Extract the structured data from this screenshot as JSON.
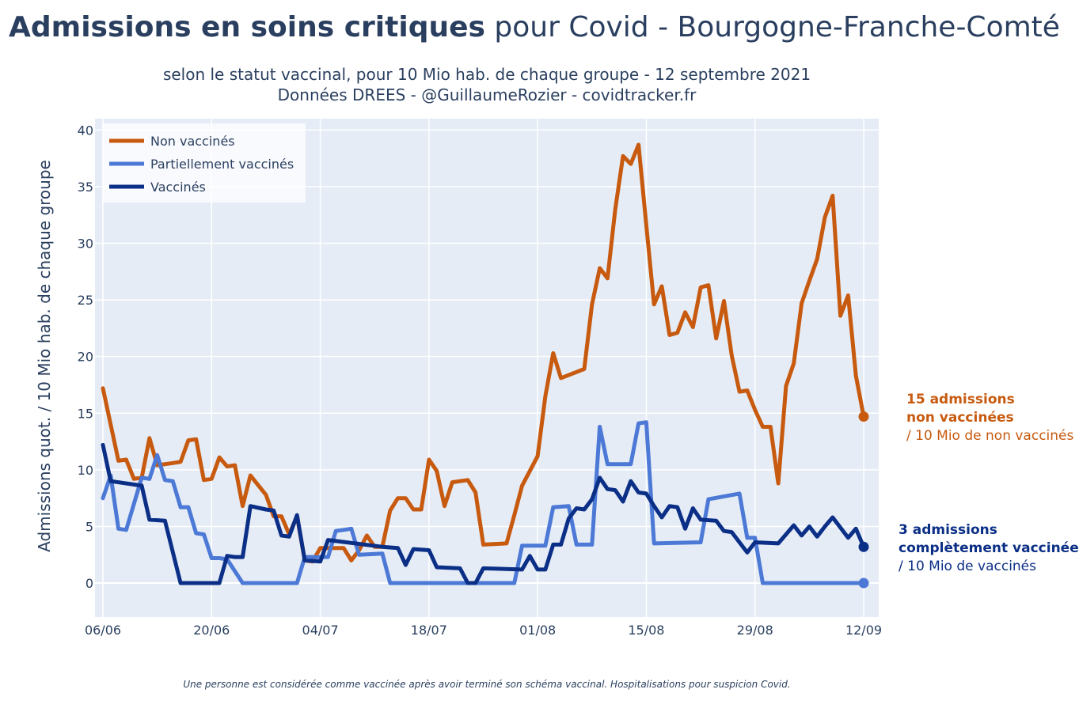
{
  "title": {
    "bold": "Admissions en soins critiques",
    "rest": " pour Covid - Bourgogne-Franche-Comté"
  },
  "subtitle": {
    "line1": "selon le statut vaccinal, pour 10 Mio hab. de chaque groupe - 12 septembre 2021",
    "line2": "Données DREES - @GuillaumeRozier - covidtracker.fr"
  },
  "footnote": "Une personne est considérée comme vaccinée après avoir terminé son schéma vaccinal. Hospitalisations pour suspicion Covid.",
  "annotations": {
    "unvaccinated": {
      "line1": "15 admissions",
      "line2": "non vaccinées",
      "line3": "/ 10 Mio de non vaccinés",
      "color": "#c75a0f"
    },
    "vaccinated": {
      "line1": "3 admissions",
      "line2": "complètement vaccinée",
      "line3": "/ 10 Mio de vaccinés",
      "color": "#0b2f86"
    }
  },
  "colors": {
    "plot_bg": "#e5ecf6",
    "grid": "#ffffff",
    "axis_text": "#2a3f5f"
  },
  "chart_data": {
    "type": "line",
    "ylabel": "Admissions quot. / 10 Mio hab. de chaque groupe",
    "xlabel": "",
    "x_start": "2021-06-06",
    "x_end": "2021-09-12",
    "ylim": [
      -3,
      41
    ],
    "yticks": [
      0,
      5,
      10,
      15,
      20,
      25,
      30,
      35,
      40
    ],
    "xticks": [
      {
        "date": "2021-06-06",
        "label": "06/06"
      },
      {
        "date": "2021-06-20",
        "label": "20/06"
      },
      {
        "date": "2021-07-04",
        "label": "04/07"
      },
      {
        "date": "2021-07-18",
        "label": "18/07"
      },
      {
        "date": "2021-08-01",
        "label": "01/08"
      },
      {
        "date": "2021-08-15",
        "label": "15/08"
      },
      {
        "date": "2021-08-29",
        "label": "29/08"
      },
      {
        "date": "2021-09-12",
        "label": "12/09"
      }
    ],
    "grid": true,
    "legend_position": "top-left",
    "series": [
      {
        "name": "Non vaccinés",
        "color": "#c75a0f",
        "values": [
          [
            "2021-06-06",
            17.2
          ],
          [
            "2021-06-07",
            14.0
          ],
          [
            "2021-06-08",
            10.8
          ],
          [
            "2021-06-09",
            10.9
          ],
          [
            "2021-06-10",
            9.2
          ],
          [
            "2021-06-11",
            9.3
          ],
          [
            "2021-06-12",
            12.8
          ],
          [
            "2021-06-13",
            10.4
          ],
          [
            "2021-06-15",
            10.6
          ],
          [
            "2021-06-16",
            10.7
          ],
          [
            "2021-06-17",
            12.6
          ],
          [
            "2021-06-18",
            12.7
          ],
          [
            "2021-06-19",
            9.1
          ],
          [
            "2021-06-20",
            9.2
          ],
          [
            "2021-06-21",
            11.1
          ],
          [
            "2021-06-22",
            10.3
          ],
          [
            "2021-06-23",
            10.4
          ],
          [
            "2021-06-24",
            6.8
          ],
          [
            "2021-06-25",
            9.5
          ],
          [
            "2021-06-27",
            7.8
          ],
          [
            "2021-06-28",
            5.9
          ],
          [
            "2021-06-29",
            5.9
          ],
          [
            "2021-06-30",
            4.3
          ],
          [
            "2021-07-01",
            5.9
          ],
          [
            "2021-07-02",
            2.0
          ],
          [
            "2021-07-03",
            1.9
          ],
          [
            "2021-07-04",
            3.1
          ],
          [
            "2021-07-05",
            3.1
          ],
          [
            "2021-07-06",
            3.1
          ],
          [
            "2021-07-07",
            3.1
          ],
          [
            "2021-07-08",
            2.0
          ],
          [
            "2021-07-09",
            2.9
          ],
          [
            "2021-07-10",
            4.2
          ],
          [
            "2021-07-11",
            3.2
          ],
          [
            "2021-07-12",
            3.2
          ],
          [
            "2021-07-13",
            6.4
          ],
          [
            "2021-07-14",
            7.5
          ],
          [
            "2021-07-15",
            7.5
          ],
          [
            "2021-07-16",
            6.5
          ],
          [
            "2021-07-17",
            6.5
          ],
          [
            "2021-07-18",
            10.9
          ],
          [
            "2021-07-19",
            9.9
          ],
          [
            "2021-07-20",
            6.8
          ],
          [
            "2021-07-21",
            8.9
          ],
          [
            "2021-07-23",
            9.1
          ],
          [
            "2021-07-24",
            8.0
          ],
          [
            "2021-07-25",
            3.4
          ],
          [
            "2021-07-28",
            3.5
          ],
          [
            "2021-07-29",
            6.0
          ],
          [
            "2021-07-30",
            8.6
          ],
          [
            "2021-08-01",
            11.2
          ],
          [
            "2021-08-02",
            16.5
          ],
          [
            "2021-08-03",
            20.3
          ],
          [
            "2021-08-04",
            18.1
          ],
          [
            "2021-08-07",
            18.9
          ],
          [
            "2021-08-08",
            24.6
          ],
          [
            "2021-08-09",
            27.8
          ],
          [
            "2021-08-10",
            26.9
          ],
          [
            "2021-08-11",
            33.0
          ],
          [
            "2021-08-12",
            37.7
          ],
          [
            "2021-08-13",
            37.0
          ],
          [
            "2021-08-14",
            38.7
          ],
          [
            "2021-08-15",
            31.6
          ],
          [
            "2021-08-16",
            24.6
          ],
          [
            "2021-08-17",
            26.2
          ],
          [
            "2021-08-18",
            21.9
          ],
          [
            "2021-08-19",
            22.1
          ],
          [
            "2021-08-20",
            23.9
          ],
          [
            "2021-08-21",
            22.6
          ],
          [
            "2021-08-22",
            26.1
          ],
          [
            "2021-08-23",
            26.3
          ],
          [
            "2021-08-24",
            21.6
          ],
          [
            "2021-08-25",
            24.9
          ],
          [
            "2021-08-26",
            20.1
          ],
          [
            "2021-08-27",
            16.9
          ],
          [
            "2021-08-28",
            17.0
          ],
          [
            "2021-08-29",
            15.3
          ],
          [
            "2021-08-30",
            13.8
          ],
          [
            "2021-08-31",
            13.8
          ],
          [
            "2021-09-01",
            8.8
          ],
          [
            "2021-09-02",
            17.4
          ],
          [
            "2021-09-03",
            19.4
          ],
          [
            "2021-09-04",
            24.7
          ],
          [
            "2021-09-05",
            26.7
          ],
          [
            "2021-09-06",
            28.6
          ],
          [
            "2021-09-07",
            32.3
          ],
          [
            "2021-09-08",
            34.2
          ],
          [
            "2021-09-09",
            23.6
          ],
          [
            "2021-09-10",
            25.4
          ],
          [
            "2021-09-11",
            18.3
          ],
          [
            "2021-09-12",
            14.7
          ]
        ]
      },
      {
        "name": "Partiellement vaccinés",
        "color": "#4c78d6",
        "values": [
          [
            "2021-06-06",
            7.5
          ],
          [
            "2021-06-07",
            9.5
          ],
          [
            "2021-06-08",
            4.8
          ],
          [
            "2021-06-09",
            4.7
          ],
          [
            "2021-06-11",
            9.3
          ],
          [
            "2021-06-12",
            9.2
          ],
          [
            "2021-06-13",
            11.3
          ],
          [
            "2021-06-14",
            9.1
          ],
          [
            "2021-06-15",
            9.0
          ],
          [
            "2021-06-16",
            6.7
          ],
          [
            "2021-06-17",
            6.7
          ],
          [
            "2021-06-18",
            4.4
          ],
          [
            "2021-06-19",
            4.3
          ],
          [
            "2021-06-20",
            2.2
          ],
          [
            "2021-06-21",
            2.2
          ],
          [
            "2021-06-22",
            2.1
          ],
          [
            "2021-06-24",
            0.0
          ],
          [
            "2021-06-30",
            0.0
          ],
          [
            "2021-07-01",
            0.0
          ],
          [
            "2021-07-02",
            2.3
          ],
          [
            "2021-07-03",
            2.3
          ],
          [
            "2021-07-04",
            2.3
          ],
          [
            "2021-07-05",
            2.3
          ],
          [
            "2021-07-06",
            4.6
          ],
          [
            "2021-07-07",
            4.7
          ],
          [
            "2021-07-08",
            4.8
          ],
          [
            "2021-07-09",
            2.5
          ],
          [
            "2021-07-12",
            2.6
          ],
          [
            "2021-07-13",
            0.0
          ],
          [
            "2021-07-29",
            0.0
          ],
          [
            "2021-07-30",
            3.3
          ],
          [
            "2021-08-01",
            3.3
          ],
          [
            "2021-08-02",
            3.3
          ],
          [
            "2021-08-03",
            6.7
          ],
          [
            "2021-08-05",
            6.8
          ],
          [
            "2021-08-06",
            3.4
          ],
          [
            "2021-08-08",
            3.4
          ],
          [
            "2021-08-09",
            13.8
          ],
          [
            "2021-08-10",
            10.5
          ],
          [
            "2021-08-13",
            10.5
          ],
          [
            "2021-08-14",
            14.1
          ],
          [
            "2021-08-15",
            14.2
          ],
          [
            "2021-08-16",
            3.5
          ],
          [
            "2021-08-22",
            3.6
          ],
          [
            "2021-08-23",
            7.4
          ],
          [
            "2021-08-27",
            7.9
          ],
          [
            "2021-08-28",
            4.0
          ],
          [
            "2021-08-29",
            4.0
          ],
          [
            "2021-08-30",
            0.0
          ],
          [
            "2021-09-12",
            0.0
          ]
        ]
      },
      {
        "name": "Vaccinés",
        "color": "#0b2f86",
        "values": [
          [
            "2021-06-06",
            12.2
          ],
          [
            "2021-06-07",
            9.0
          ],
          [
            "2021-06-11",
            8.6
          ],
          [
            "2021-06-12",
            5.6
          ],
          [
            "2021-06-14",
            5.5
          ],
          [
            "2021-06-16",
            0.0
          ],
          [
            "2021-06-21",
            0.0
          ],
          [
            "2021-06-22",
            2.4
          ],
          [
            "2021-06-23",
            2.3
          ],
          [
            "2021-06-24",
            2.3
          ],
          [
            "2021-06-25",
            6.8
          ],
          [
            "2021-06-27",
            6.5
          ],
          [
            "2021-06-28",
            6.4
          ],
          [
            "2021-06-29",
            4.2
          ],
          [
            "2021-06-30",
            4.1
          ],
          [
            "2021-07-01",
            6.0
          ],
          [
            "2021-07-02",
            2.0
          ],
          [
            "2021-07-04",
            1.9
          ],
          [
            "2021-07-05",
            3.8
          ],
          [
            "2021-07-12",
            3.2
          ],
          [
            "2021-07-14",
            3.1
          ],
          [
            "2021-07-15",
            1.6
          ],
          [
            "2021-07-16",
            3.0
          ],
          [
            "2021-07-18",
            2.9
          ],
          [
            "2021-07-19",
            1.4
          ],
          [
            "2021-07-22",
            1.3
          ],
          [
            "2021-07-23",
            0.0
          ],
          [
            "2021-07-24",
            0.0
          ],
          [
            "2021-07-25",
            1.3
          ],
          [
            "2021-07-30",
            1.2
          ],
          [
            "2021-07-31",
            2.4
          ],
          [
            "2021-08-01",
            1.2
          ],
          [
            "2021-08-02",
            1.2
          ],
          [
            "2021-08-03",
            3.4
          ],
          [
            "2021-08-04",
            3.4
          ],
          [
            "2021-08-05",
            5.7
          ],
          [
            "2021-08-06",
            6.6
          ],
          [
            "2021-08-07",
            6.5
          ],
          [
            "2021-08-08",
            7.4
          ],
          [
            "2021-08-09",
            9.3
          ],
          [
            "2021-08-10",
            8.3
          ],
          [
            "2021-08-11",
            8.2
          ],
          [
            "2021-08-12",
            7.2
          ],
          [
            "2021-08-13",
            9.0
          ],
          [
            "2021-08-14",
            8.0
          ],
          [
            "2021-08-15",
            7.9
          ],
          [
            "2021-08-16",
            6.8
          ],
          [
            "2021-08-17",
            5.8
          ],
          [
            "2021-08-18",
            6.8
          ],
          [
            "2021-08-19",
            6.7
          ],
          [
            "2021-08-20",
            4.8
          ],
          [
            "2021-08-21",
            6.6
          ],
          [
            "2021-08-22",
            5.6
          ],
          [
            "2021-08-24",
            5.5
          ],
          [
            "2021-08-25",
            4.6
          ],
          [
            "2021-08-26",
            4.5
          ],
          [
            "2021-08-27",
            3.6
          ],
          [
            "2021-08-28",
            2.7
          ],
          [
            "2021-08-29",
            3.6
          ],
          [
            "2021-09-01",
            3.5
          ],
          [
            "2021-09-02",
            4.3
          ],
          [
            "2021-09-03",
            5.1
          ],
          [
            "2021-09-04",
            4.2
          ],
          [
            "2021-09-05",
            5.0
          ],
          [
            "2021-09-06",
            4.1
          ],
          [
            "2021-09-07",
            5.0
          ],
          [
            "2021-09-08",
            5.8
          ],
          [
            "2021-09-09",
            4.9
          ],
          [
            "2021-09-10",
            4.0
          ],
          [
            "2021-09-11",
            4.8
          ],
          [
            "2021-09-12",
            3.2
          ]
        ]
      }
    ]
  }
}
